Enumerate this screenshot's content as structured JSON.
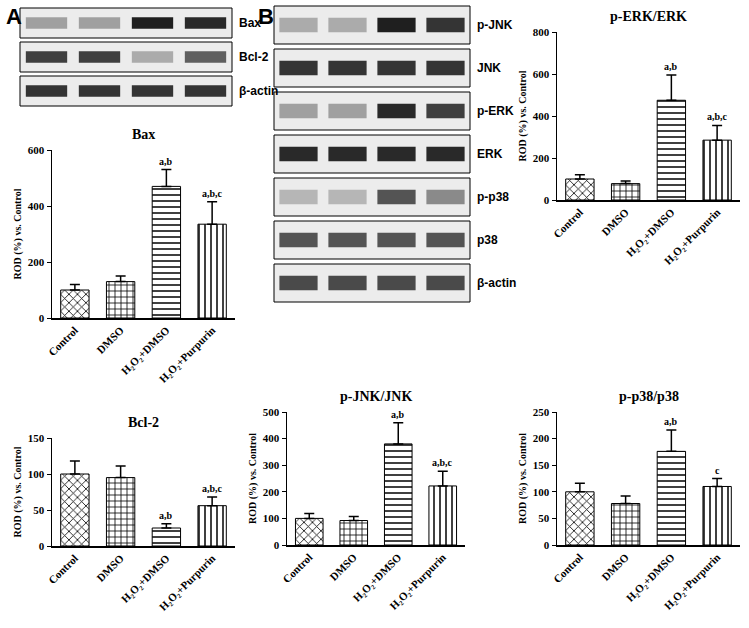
{
  "chart_data": [
    {
      "type": "bar",
      "title": "Bax",
      "ylabel": "ROD (%) vs. Control",
      "categories": [
        "Control",
        "DMSO",
        "H₂O₂+DMSO",
        "H₂O₂+Purpurin"
      ],
      "values": [
        100,
        130,
        470,
        335
      ],
      "errors": [
        20,
        20,
        60,
        80
      ],
      "annotations": [
        null,
        null,
        "a,b",
        "a,b,c"
      ],
      "color": "#ffffff",
      "ylim": [
        0,
        600
      ],
      "yticks": [
        0,
        200,
        400,
        600
      ],
      "grid": false
    },
    {
      "type": "bar",
      "title": "Bcl-2",
      "ylabel": "ROD (%) vs. Control",
      "categories": [
        "Control",
        "DMSO",
        "H₂O₂+DMSO",
        "H₂O₂+Purpurin"
      ],
      "values": [
        100,
        95,
        25,
        56
      ],
      "errors": [
        18,
        16,
        6,
        12
      ],
      "annotations": [
        null,
        null,
        "a,b",
        "a,b,c"
      ],
      "color": "#ffffff",
      "ylim": [
        0,
        150
      ],
      "yticks": [
        0,
        50,
        100,
        150
      ],
      "grid": false
    },
    {
      "type": "bar",
      "title": "p-ERK/ERK",
      "ylabel": "ROD (%) vs. Control",
      "categories": [
        "Control",
        "DMSO",
        "H₂O₂+DMSO",
        "H₂O₂+Purpurin"
      ],
      "values": [
        100,
        78,
        475,
        285
      ],
      "errors": [
        20,
        12,
        120,
        70
      ],
      "annotations": [
        null,
        null,
        "a,b",
        "a,b,c"
      ],
      "color": "#ffffff",
      "ylim": [
        0,
        800
      ],
      "yticks": [
        0,
        200,
        400,
        600,
        800
      ],
      "grid": false
    },
    {
      "type": "bar",
      "title": "p-JNK/JNK",
      "ylabel": "ROD (%) vs. Control",
      "categories": [
        "Control",
        "DMSO",
        "H₂O₂+DMSO",
        "H₂O₂+Purpurin"
      ],
      "values": [
        100,
        92,
        380,
        222
      ],
      "errors": [
        18,
        15,
        80,
        55
      ],
      "annotations": [
        null,
        null,
        "a,b",
        "a,b,c"
      ],
      "color": "#ffffff",
      "ylim": [
        0,
        500
      ],
      "yticks": [
        0,
        100,
        200,
        300,
        400,
        500
      ],
      "grid": false
    },
    {
      "type": "bar",
      "title": "p-p38/p38",
      "ylabel": "ROD (%) vs. Control",
      "categories": [
        "Control",
        "DMSO",
        "H₂O₂+DMSO",
        "H₂O₂+Purpurin"
      ],
      "values": [
        100,
        78,
        176,
        110
      ],
      "errors": [
        16,
        14,
        40,
        15
      ],
      "annotations": [
        null,
        null,
        "a,b",
        "c"
      ],
      "color": "#ffffff",
      "ylim": [
        0,
        250
      ],
      "yticks": [
        0,
        50,
        100,
        150,
        200,
        250
      ],
      "grid": false
    }
  ],
  "blots": [
    {
      "panel": "A",
      "rows": [
        {
          "label": "Bax",
          "intensity": [
            0.35,
            0.35,
            0.95,
            0.9
          ]
        },
        {
          "label": "Bcl-2",
          "intensity": [
            0.8,
            0.8,
            0.3,
            0.65
          ]
        },
        {
          "label": "β-actin",
          "intensity": [
            0.85,
            0.85,
            0.85,
            0.85
          ]
        }
      ]
    },
    {
      "panel": "B",
      "rows": [
        {
          "label": "p-JNK",
          "intensity": [
            0.3,
            0.3,
            0.95,
            0.85
          ]
        },
        {
          "label": "JNK",
          "intensity": [
            0.85,
            0.85,
            0.85,
            0.85
          ]
        },
        {
          "label": "p-ERK",
          "intensity": [
            0.35,
            0.35,
            0.9,
            0.8
          ]
        },
        {
          "label": "ERK",
          "intensity": [
            0.9,
            0.9,
            0.9,
            0.9
          ]
        },
        {
          "label": "p-p38",
          "intensity": [
            0.25,
            0.25,
            0.7,
            0.45
          ]
        },
        {
          "label": "p38",
          "intensity": [
            0.7,
            0.7,
            0.7,
            0.7
          ]
        },
        {
          "label": "β-actin",
          "intensity": [
            0.75,
            0.75,
            0.75,
            0.75
          ]
        }
      ]
    }
  ]
}
